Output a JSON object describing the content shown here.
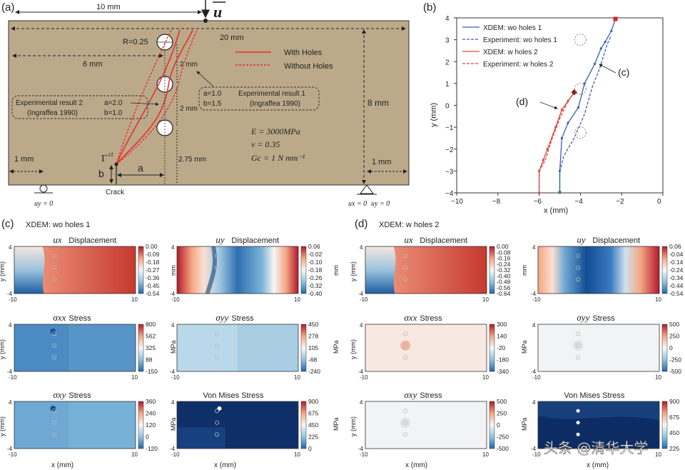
{
  "panel_a": {
    "label": "(a)",
    "dim_10mm": "10 mm",
    "load": "u",
    "dim_20mm": "20 mm",
    "radius": "R=0.25",
    "dim_6mm": "6 mm",
    "dim_2mm_a": "2 mm",
    "dim_2mm_b": "2 mm",
    "dim_8mm": "8 mm",
    "dim_1mm_left": "1 mm",
    "dim_1mm_right": "1 mm",
    "dim_275": "2.75 mm",
    "legend_with": "With Holes",
    "legend_without": "Without Holes",
    "exp2_title": "Experimental result 2",
    "exp2_ref": "(Ingraffea 1990)",
    "exp2_a": "a=2.0",
    "exp2_b": "b=1.0",
    "exp1_title": "Experimental result 1",
    "exp1_ref": "(Ingraffea 1990)",
    "exp1_a": "a=1.0",
    "exp1_b": "b=1.5",
    "E": "E = 3000MPa",
    "nu": "ν = 0.35",
    "Gc": "Gc = 1 N mm⁻¹",
    "gamma": "Γ",
    "gamma_sup": "ct",
    "a_lbl": "a",
    "b_lbl": "b",
    "crack": "Crack",
    "bc_left": "uy = 0",
    "bc_right1": "ux = 0",
    "bc_right2": "uy = 0",
    "colors": {
      "plate": "#bba98a",
      "with_holes": "#e8302a"
    }
  },
  "panel_b": {
    "label": "(b)",
    "annot_c": "(c)",
    "annot_d": "(d)",
    "chart_data": {
      "type": "line",
      "xlabel": "x (mm)",
      "ylabel": "y (mm)",
      "xlim": [
        -10,
        0
      ],
      "ylim": [
        -4,
        4
      ],
      "xticks": [
        "−10",
        "−8",
        "−6",
        "−4",
        "−2",
        "0"
      ],
      "yticks": [
        "−4",
        "−3",
        "−2",
        "−1",
        "0",
        "1",
        "2",
        "3",
        "4"
      ],
      "legend_position": "top-left",
      "series": [
        {
          "name": "XDEM: wo holes 1",
          "color": "#3b5fb0",
          "dash": false,
          "x": [
            -5,
            -5,
            -4.9,
            -4.6,
            -4.1,
            -3.8,
            -3.3,
            -3.0,
            -2.8,
            -2.5,
            -2.3
          ],
          "y": [
            -4,
            -3,
            -1.5,
            -0.8,
            -0.1,
            1.0,
            1.9,
            2.6,
            2.9,
            3.4,
            3.95
          ]
        },
        {
          "name": "Experiment: wo holes 1",
          "color": "#3b5fb0",
          "dash": true,
          "x": [
            -5,
            -5,
            -4.8,
            -4.3,
            -3.8,
            -3.4,
            -3.1,
            -2.9,
            -2.7,
            -2.5
          ],
          "y": [
            -4,
            -3,
            -2.3,
            -1.5,
            -0.4,
            0.9,
            1.6,
            2.2,
            2.8,
            3.2
          ]
        },
        {
          "name": "XDEM: w holes 2",
          "color": "#d9473e",
          "dash": false,
          "x": [
            -6,
            -6,
            -5.8,
            -5.6,
            -5.2,
            -4.9,
            -4.6,
            -4.3
          ],
          "y": [
            -4,
            -3,
            -2.5,
            -2.0,
            -1.0,
            -0.2,
            0.2,
            0.6
          ]
        },
        {
          "name": "Experiment: w holes 2",
          "color": "#d9473e",
          "dash": true,
          "x": [
            -6,
            -6,
            -5.7,
            -5.4,
            -5.0,
            -4.6,
            -4.3
          ],
          "y": [
            -4,
            -3,
            -2.5,
            -1.6,
            -0.6,
            0.2,
            0.6
          ]
        }
      ],
      "holes": [
        {
          "x": -4,
          "y": 3
        },
        {
          "x": -4,
          "y": 0.75
        },
        {
          "x": -4,
          "y": -1.25
        }
      ]
    }
  },
  "panel_c": {
    "label": "(c)",
    "title": "XDEM:  wo holes 1",
    "xlabel": "x (mm)",
    "ylabel": "y (mm)",
    "plots": [
      {
        "sym": "ux",
        "name": "Displacement",
        "unit": "mm",
        "ticks": [
          "0.00",
          "-0.09",
          "-0.18",
          "-0.27",
          "-0.36",
          "-0.45",
          "-0.54"
        ],
        "type": "ux"
      },
      {
        "sym": "uy",
        "name": "Displacement",
        "unit": "mm",
        "ticks": [
          "0.06",
          "-0.02",
          "-0.10",
          "-0.18",
          "-0.26",
          "-0.32",
          "-0.40"
        ],
        "type": "uy"
      },
      {
        "sym": "σxx",
        "name": "Stress",
        "unit": "MPa",
        "ticks": [
          "800",
          "562",
          "325",
          "88",
          "-150"
        ],
        "type": "sxx"
      },
      {
        "sym": "σyy",
        "name": "Stress",
        "unit": "MPa",
        "ticks": [
          "450",
          "278",
          "105",
          "-68",
          "-240"
        ],
        "type": "syy"
      },
      {
        "sym": "σxy",
        "name": "Stress",
        "unit": "MPa",
        "ticks": [
          "360",
          "240",
          "120",
          "0",
          "-120"
        ],
        "type": "sxy"
      },
      {
        "sym": "",
        "name": "Von Mises Stress",
        "unit": "MPa",
        "ticks": [
          "900",
          "675",
          "450",
          "225",
          "0"
        ],
        "type": "vm"
      }
    ]
  },
  "panel_d": {
    "label": "(d)",
    "title": "XDEM:  w holes 2",
    "xlabel": "x (mm)",
    "ylabel": "y (mm)",
    "plots": [
      {
        "sym": "ux",
        "name": "Displacement",
        "unit": "mm",
        "ticks": [
          "0.00",
          "-0.08",
          "-0.16",
          "-0.24",
          "-0.32",
          "-0.40",
          "-0.48",
          "-0.56",
          "-0.64"
        ],
        "type": "ux"
      },
      {
        "sym": "uy",
        "name": "Displacement",
        "unit": "mm",
        "ticks": [
          "0.06",
          "-0.04",
          "-0.14",
          "-0.24",
          "-0.34",
          "-0.44",
          "-0.54"
        ],
        "type": "uy2"
      },
      {
        "sym": "σxx",
        "name": "Stress",
        "unit": "MPa",
        "ticks": [
          "300",
          "140",
          "-20",
          "-180",
          "-340"
        ],
        "type": "sxx2"
      },
      {
        "sym": "σyy",
        "name": "Stress",
        "unit": "MPa",
        "ticks": [
          "500",
          "250",
          "0",
          "-250",
          "-500"
        ],
        "type": "syy2"
      },
      {
        "sym": "σxy",
        "name": "Stress",
        "unit": "MPa",
        "ticks": [
          "500",
          "250",
          "0",
          "-250",
          "-500"
        ],
        "type": "sxy2"
      },
      {
        "sym": "",
        "name": "Von Mises Stress",
        "unit": "MPa",
        "ticks": [
          "900",
          "675",
          "450",
          "225"
        ],
        "type": "vm2"
      }
    ],
    "ticks_x": [
      "-10",
      "10"
    ],
    "ticks_y": [
      "4",
      "-4"
    ]
  },
  "watermark": "头条 @清华大学"
}
